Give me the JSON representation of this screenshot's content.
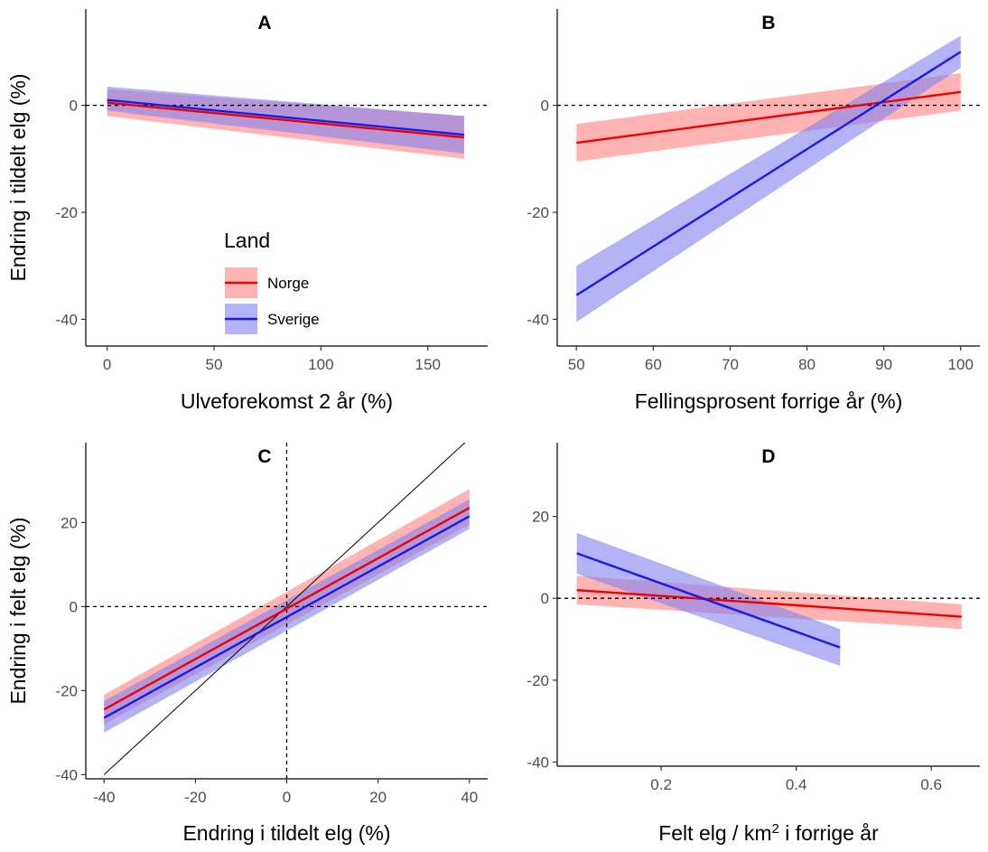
{
  "colors": {
    "norge_line": "#ee0000",
    "norge_band": "#ff9999",
    "sverige_line": "#1a1ae6",
    "sverige_band": "#8080f0",
    "overlap_band": "#8c4aa6"
  },
  "legend": {
    "title": "Land",
    "items": [
      "Norge",
      "Sverige"
    ]
  },
  "chart_data": [
    {
      "type": "line",
      "title": "A",
      "xlabel": "Ulveforekomst 2 år (%)",
      "ylabel": "Endring i tildelt elg (%)",
      "xticks": [
        0,
        50,
        100,
        150
      ],
      "yticks": [
        -40,
        -20,
        0
      ],
      "series": [
        {
          "name": "Norge",
          "x": [
            0,
            167
          ],
          "y": [
            0.5,
            -6
          ],
          "lower": [
            -2,
            -10
          ],
          "upper": [
            3,
            -2
          ]
        },
        {
          "name": "Sverige",
          "x": [
            0,
            167
          ],
          "y": [
            1,
            -5.5
          ],
          "lower": [
            -1,
            -9
          ],
          "upper": [
            3.5,
            -2
          ]
        }
      ],
      "hline": 0
    },
    {
      "type": "line",
      "title": "B",
      "xlabel": "Fellingsprosent forrige år (%)",
      "ylabel": "",
      "xticks": [
        50,
        60,
        70,
        80,
        90,
        100
      ],
      "yticks": [
        -40,
        -20,
        0
      ],
      "series": [
        {
          "name": "Norge",
          "x": [
            50,
            100
          ],
          "y": [
            -7,
            2.5
          ],
          "lower": [
            -10.5,
            -1
          ],
          "upper": [
            -3.5,
            6
          ]
        },
        {
          "name": "Sverige",
          "x": [
            50,
            100
          ],
          "y": [
            -35.5,
            10
          ],
          "lower": [
            -40.5,
            7
          ],
          "upper": [
            -30,
            13
          ]
        }
      ],
      "hline": 0
    },
    {
      "type": "line",
      "title": "C",
      "xlabel": "Endring i tildelt elg (%)",
      "ylabel": "Endring i felt elg (%)",
      "xticks": [
        -40,
        -20,
        0,
        20,
        40
      ],
      "yticks": [
        -40,
        -20,
        0,
        20
      ],
      "series": [
        {
          "name": "Norge",
          "x": [
            -40,
            40
          ],
          "y": [
            -24.5,
            23.5
          ],
          "lower": [
            -28,
            19.5
          ],
          "upper": [
            -21,
            28
          ]
        },
        {
          "name": "Sverige",
          "x": [
            -40,
            40
          ],
          "y": [
            -26.5,
            21.5
          ],
          "lower": [
            -30,
            18.5
          ],
          "upper": [
            -22.5,
            25.5
          ]
        }
      ],
      "hline": 0,
      "vline": 0,
      "identity_line": [
        [
          -40,
          -40
        ],
        [
          40,
          40
        ]
      ]
    },
    {
      "type": "line",
      "title": "D",
      "xlabel": "Felt elg / km² i forrige år",
      "ylabel": "",
      "xticks": [
        0.2,
        0.4,
        0.6
      ],
      "yticks": [
        -40,
        -20,
        0,
        20
      ],
      "series": [
        {
          "name": "Norge",
          "x": [
            0.075,
            0.645
          ],
          "y": [
            2,
            -4.5
          ],
          "lower": [
            -1.5,
            -7.5
          ],
          "upper": [
            5.5,
            -1.5
          ]
        },
        {
          "name": "Sverige",
          "x": [
            0.075,
            0.465
          ],
          "y": [
            11,
            -12
          ],
          "lower": [
            6,
            -16.5
          ],
          "upper": [
            16,
            -7.5
          ]
        }
      ],
      "hline": 0
    }
  ]
}
